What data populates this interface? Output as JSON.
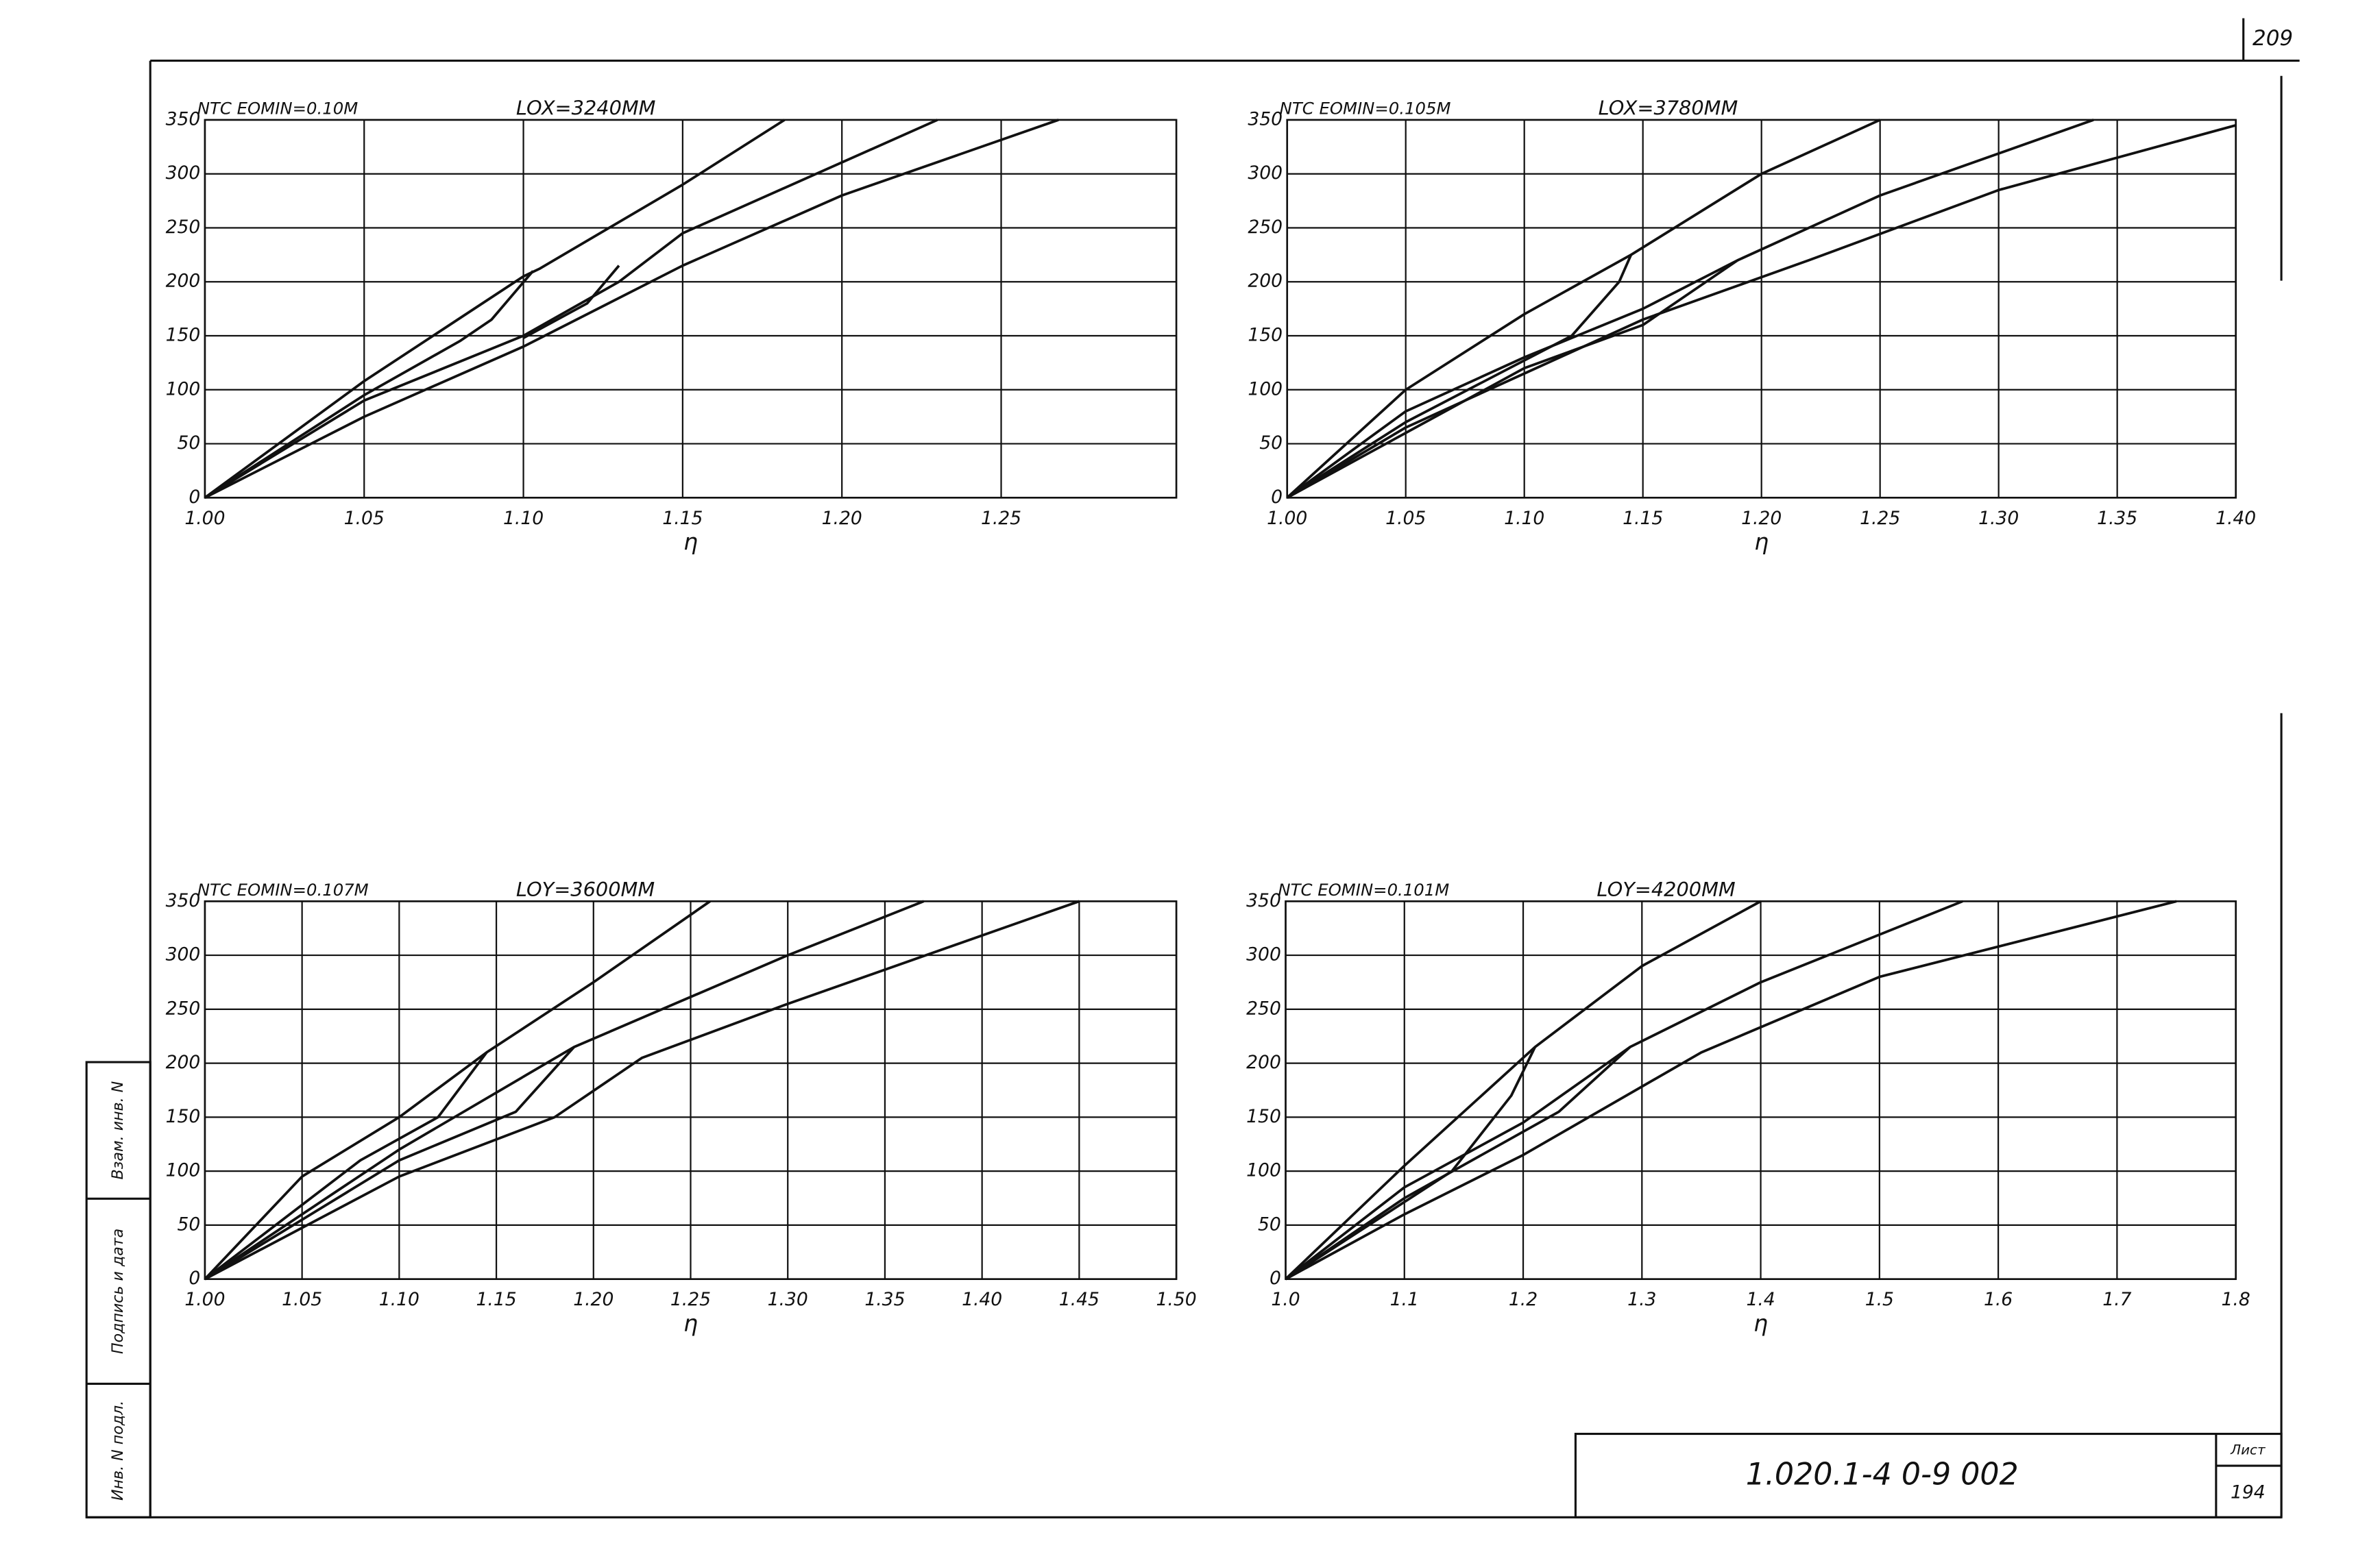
{
  "page": {
    "page_number": "209",
    "doc_code": "1.020.1-4 0-9 002",
    "sheet_label": "Лист",
    "sheet_number": "194",
    "side_labels": [
      "Инв. N подл.",
      "Подпись и дата",
      "Взам. инв. N"
    ]
  },
  "chart_data": [
    {
      "type": "line",
      "title": "NTC EOMIN=0.10M",
      "subtitle": "LOX=3240MM",
      "x_label": "η",
      "grid": true,
      "xlim": [
        1.0,
        1.305
      ],
      "xticks": [
        {
          "value": 1.0,
          "label": "1.00"
        },
        1.05,
        {
          "value": 1.1,
          "label": "1.10"
        },
        1.15,
        {
          "value": 1.2,
          "label": "1.20"
        },
        1.25
      ],
      "ylim": [
        0,
        350
      ],
      "yticks": [
        0,
        50,
        100,
        150,
        200,
        250,
        300,
        350
      ],
      "series": [
        {
          "color": "#111111",
          "x": [
            1.0,
            1.05,
            1.1,
            1.105,
            1.15,
            1.182
          ],
          "values": [
            0,
            108,
            205,
            212,
            290,
            350
          ]
        },
        {
          "color": "#111111",
          "x": [
            1.103,
            1.09,
            1.08,
            1.05,
            1.0
          ],
          "values": [
            210,
            165,
            145,
            95,
            0
          ]
        },
        {
          "color": "#111111",
          "x": [
            1.0,
            1.05,
            1.1,
            1.13,
            1.15,
            1.23
          ],
          "values": [
            0,
            90,
            150,
            200,
            245,
            350
          ]
        },
        {
          "color": "#111111",
          "x": [
            1.1,
            1.12,
            1.13
          ],
          "values": [
            148,
            180,
            215
          ]
        },
        {
          "color": "#111111",
          "x": [
            1.0,
            1.05,
            1.1,
            1.15,
            1.2,
            1.268
          ],
          "values": [
            0,
            75,
            140,
            215,
            280,
            350
          ]
        }
      ]
    },
    {
      "type": "line",
      "title": "NTC EOMIN=0.105M",
      "subtitle": "LOX=3780MM",
      "x_label": "η",
      "grid": true,
      "xlim": [
        1.0,
        1.4
      ],
      "xticks": [
        {
          "value": 1.0,
          "label": "1.00"
        },
        1.05,
        {
          "value": 1.1,
          "label": "1.10"
        },
        1.15,
        {
          "value": 1.2,
          "label": "1.20"
        },
        1.25,
        {
          "value": 1.3,
          "label": "1.30"
        },
        1.35,
        {
          "value": 1.4,
          "label": "1.40"
        }
      ],
      "ylim": [
        0,
        350
      ],
      "yticks": [
        0,
        50,
        100,
        150,
        200,
        250,
        300,
        350
      ],
      "series": [
        {
          "color": "#111111",
          "x": [
            1.0,
            1.05,
            1.1,
            1.145,
            1.2,
            1.25
          ],
          "values": [
            0,
            100,
            170,
            225,
            300,
            350
          ]
        },
        {
          "color": "#111111",
          "x": [
            1.145,
            1.14,
            1.12,
            1.05,
            1.0
          ],
          "values": [
            225,
            200,
            150,
            70,
            0
          ]
        },
        {
          "color": "#111111",
          "x": [
            1.0,
            1.05,
            1.1,
            1.15,
            1.19,
            1.25,
            1.34
          ],
          "values": [
            0,
            80,
            130,
            175,
            220,
            280,
            350
          ]
        },
        {
          "color": "#111111",
          "x": [
            1.19,
            1.15,
            1.1,
            1.0
          ],
          "values": [
            220,
            160,
            120,
            0
          ]
        },
        {
          "color": "#111111",
          "x": [
            1.0,
            1.05,
            1.1,
            1.15,
            1.22,
            1.3,
            1.4
          ],
          "values": [
            0,
            65,
            115,
            165,
            220,
            285,
            345
          ]
        }
      ]
    },
    {
      "type": "line",
      "title": "NTC EOMIN=0.107M",
      "subtitle": "LOY=3600MM",
      "x_label": "η",
      "grid": true,
      "xlim": [
        1.0,
        1.5
      ],
      "xticks": [
        {
          "value": 1.0,
          "label": "1.00"
        },
        1.05,
        {
          "value": 1.1,
          "label": "1.10"
        },
        1.15,
        {
          "value": 1.2,
          "label": "1.20"
        },
        1.25,
        {
          "value": 1.3,
          "label": "1.30"
        },
        1.35,
        {
          "value": 1.4,
          "label": "1.40"
        },
        1.45,
        {
          "value": 1.5,
          "label": "1.50"
        }
      ],
      "ylim": [
        0,
        350
      ],
      "yticks": [
        0,
        50,
        100,
        150,
        200,
        250,
        300,
        350
      ],
      "series": [
        {
          "color": "#111111",
          "x": [
            1.0,
            1.05,
            1.1,
            1.145,
            1.2,
            1.26
          ],
          "values": [
            0,
            95,
            150,
            210,
            275,
            350
          ]
        },
        {
          "color": "#111111",
          "x": [
            1.145,
            1.12,
            1.08,
            1.0
          ],
          "values": [
            210,
            150,
            110,
            0
          ]
        },
        {
          "color": "#111111",
          "x": [
            1.0,
            1.1,
            1.19,
            1.3,
            1.37
          ],
          "values": [
            0,
            120,
            215,
            300,
            350
          ]
        },
        {
          "color": "#111111",
          "x": [
            1.19,
            1.16,
            1.1,
            1.0
          ],
          "values": [
            215,
            155,
            110,
            0
          ]
        },
        {
          "color": "#111111",
          "x": [
            1.0,
            1.1,
            1.18,
            1.225,
            1.3,
            1.45
          ],
          "values": [
            0,
            95,
            150,
            205,
            255,
            350
          ]
        }
      ]
    },
    {
      "type": "line",
      "title": "NTC EOMIN=0.101M",
      "subtitle": "LOY=4200MM",
      "x_label": "η",
      "grid": true,
      "xlim": [
        1.0,
        1.8
      ],
      "xticks": [
        {
          "value": 1.0,
          "label": "1.0"
        },
        1.1,
        1.2,
        1.3,
        1.4,
        1.5,
        1.6,
        1.7,
        1.8
      ],
      "ylim": [
        0,
        350
      ],
      "yticks": [
        0,
        50,
        100,
        150,
        200,
        250,
        300,
        350
      ],
      "series": [
        {
          "color": "#111111",
          "x": [
            1.0,
            1.1,
            1.21,
            1.3,
            1.4
          ],
          "values": [
            0,
            105,
            215,
            290,
            350
          ]
        },
        {
          "color": "#111111",
          "x": [
            1.21,
            1.19,
            1.14,
            1.0
          ],
          "values": [
            215,
            170,
            100,
            0
          ]
        },
        {
          "color": "#111111",
          "x": [
            1.0,
            1.1,
            1.2,
            1.29,
            1.4,
            1.57
          ],
          "values": [
            0,
            85,
            145,
            215,
            275,
            350
          ]
        },
        {
          "color": "#111111",
          "x": [
            1.29,
            1.23,
            1.1,
            1.0
          ],
          "values": [
            215,
            155,
            75,
            0
          ]
        },
        {
          "color": "#111111",
          "x": [
            1.0,
            1.1,
            1.2,
            1.35,
            1.5,
            1.75
          ],
          "values": [
            0,
            60,
            115,
            210,
            280,
            350
          ]
        }
      ]
    }
  ]
}
